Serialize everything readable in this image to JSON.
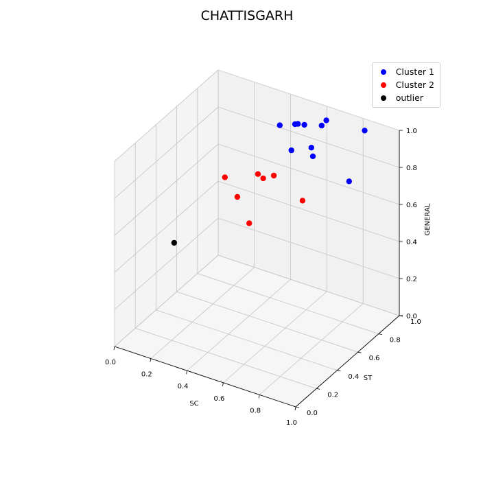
{
  "chart_data": {
    "type": "scatter",
    "projection": "3d",
    "title": "CHATTISGARH",
    "xlabel": "SC",
    "ylabel": "ST",
    "zlabel": "GENERAL",
    "xlim": [
      0,
      1
    ],
    "ylim": [
      0,
      1
    ],
    "zlim": [
      0,
      1
    ],
    "xticks": [
      "0.0",
      "0.2",
      "0.4",
      "0.6",
      "0.8",
      "1.0"
    ],
    "yticks": [
      "0.0",
      "0.2",
      "0.4",
      "0.6",
      "0.8",
      "1.0"
    ],
    "zticks": [
      "0.0",
      "0.2",
      "0.4",
      "0.6",
      "0.8",
      "1.0"
    ],
    "grid": true,
    "legend_position": "top-right",
    "series": [
      {
        "name": "Cluster 1",
        "color": "#0000ff",
        "points": [
          {
            "x": 0.82,
            "y": 0.98,
            "z": 0.95
          },
          {
            "x": 0.62,
            "y": 0.96,
            "z": 0.95
          },
          {
            "x": 0.6,
            "y": 0.95,
            "z": 0.92
          },
          {
            "x": 0.51,
            "y": 0.94,
            "z": 0.9
          },
          {
            "x": 0.48,
            "y": 0.93,
            "z": 0.9
          },
          {
            "x": 0.47,
            "y": 0.92,
            "z": 0.9
          },
          {
            "x": 0.38,
            "y": 0.93,
            "z": 0.86
          },
          {
            "x": 0.6,
            "y": 0.85,
            "z": 0.85
          },
          {
            "x": 0.62,
            "y": 0.83,
            "z": 0.82
          },
          {
            "x": 0.49,
            "y": 0.85,
            "z": 0.8
          },
          {
            "x": 0.82,
            "y": 0.83,
            "z": 0.75
          }
        ]
      },
      {
        "name": "Cluster 2",
        "color": "#ff0000",
        "points": [
          {
            "x": 0.45,
            "y": 0.75,
            "z": 0.7
          },
          {
            "x": 0.38,
            "y": 0.72,
            "z": 0.7
          },
          {
            "x": 0.42,
            "y": 0.7,
            "z": 0.7
          },
          {
            "x": 0.62,
            "y": 0.73,
            "z": 0.63
          },
          {
            "x": 0.22,
            "y": 0.68,
            "z": 0.65
          },
          {
            "x": 0.3,
            "y": 0.66,
            "z": 0.58
          },
          {
            "x": 0.4,
            "y": 0.6,
            "z": 0.5
          }
        ]
      },
      {
        "name": "outlier",
        "color": "#000000",
        "points": [
          {
            "x": 0.02,
            "y": 0.54,
            "z": 0.3
          }
        ]
      }
    ]
  }
}
